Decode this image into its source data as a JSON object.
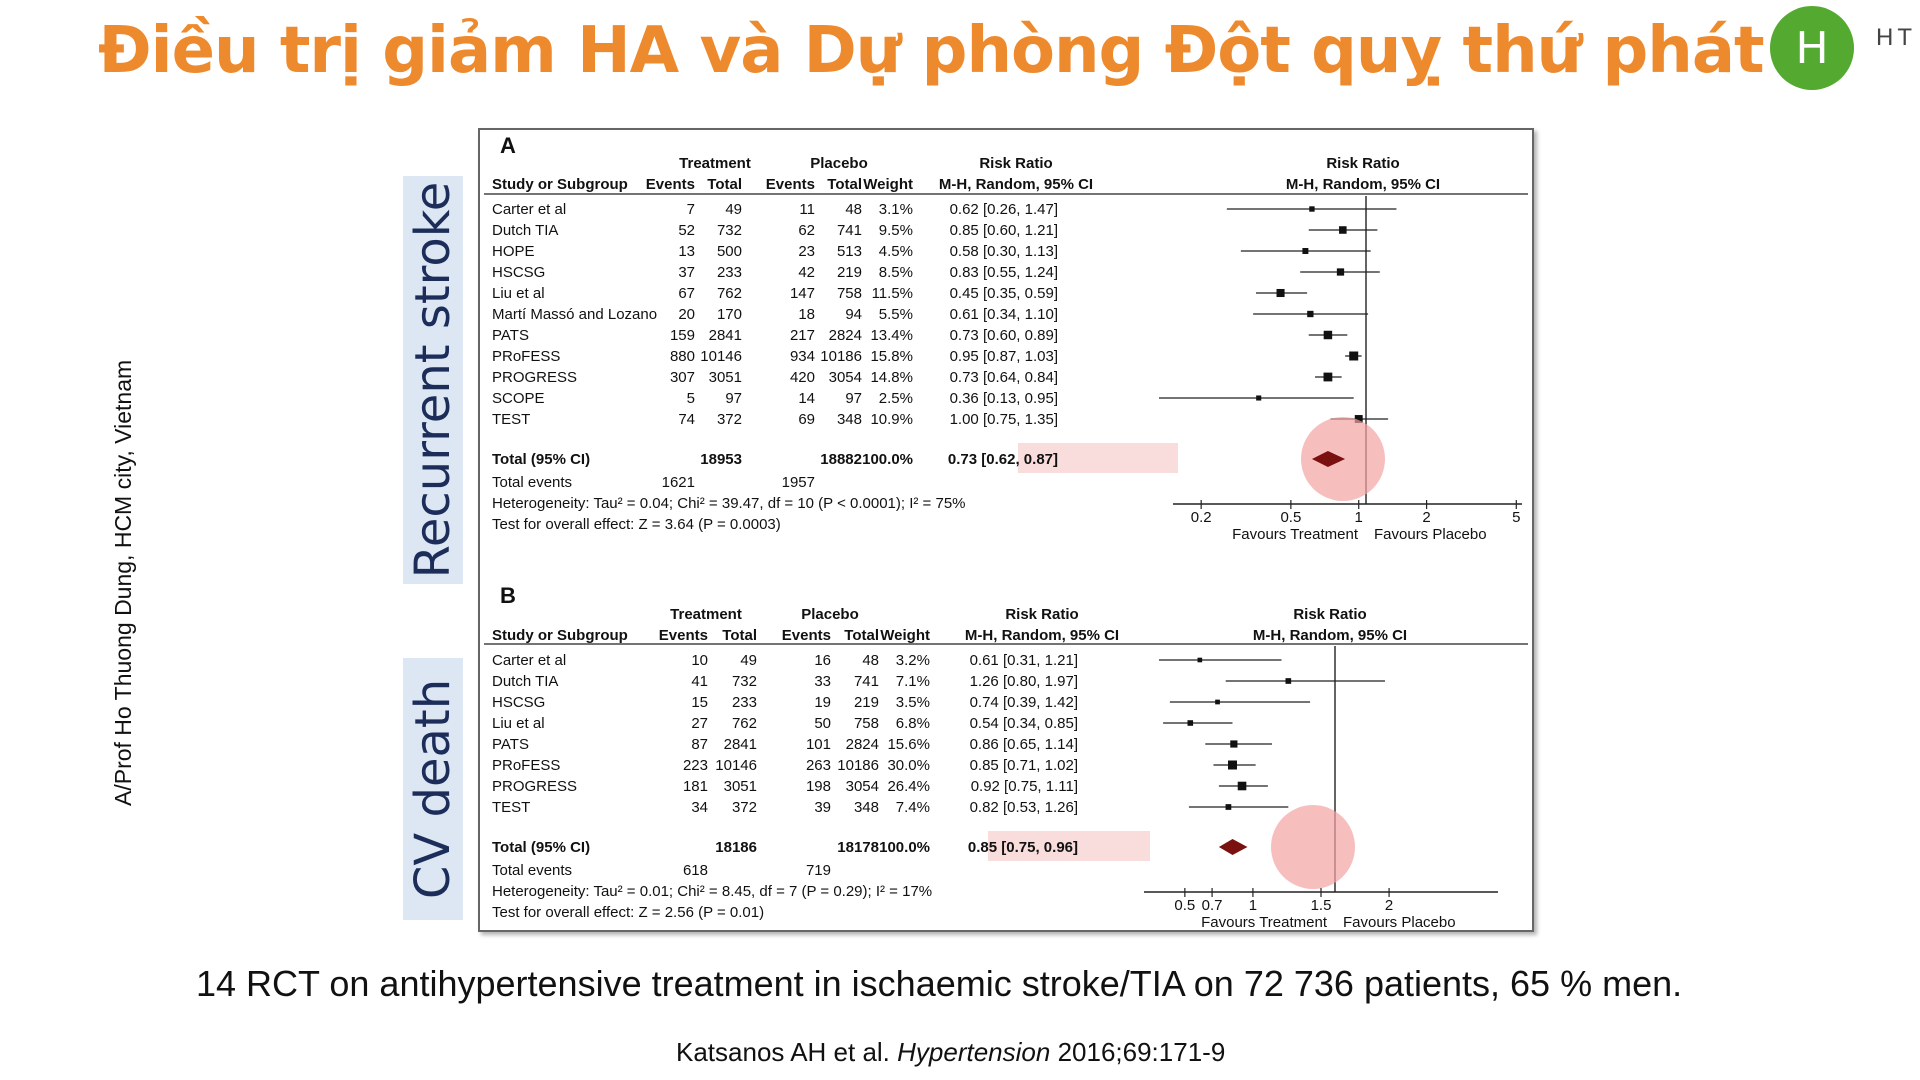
{
  "slide": {
    "title": "Điều trị giảm HA và Dự phòng Đột quỵ thứ phát",
    "logo_letter": "H",
    "logo_text": "HT",
    "author": "A/Prof Ho Thuong Dung, HCM city, Vietnam",
    "label_recurrent": "Recurrent stroke",
    "label_cv": "CV death",
    "summary": "14 RCT  on antihypertensive treatment in ischaemic stroke/TIA on 72 736 patients, 65 % men.",
    "citation_author": "Katsanos AH et al. ",
    "citation_journal": "Hypertension",
    "citation_rest": " 2016;69:171-9"
  },
  "colors": {
    "title": "#ee8a2e",
    "logo": "#54a930",
    "highlight_box": "#f9dcdc",
    "highlight_circle": "#f4a3a3",
    "diamond": "#7a1010",
    "side_label_bg": "#dce7f3",
    "side_label_text": "#1c2d5a"
  },
  "chart_data": [
    {
      "type": "forest",
      "panel_label": "A",
      "header_group": {
        "treatment": "Treatment",
        "placebo": "Placebo",
        "rr": "Risk Ratio",
        "rr_plot": "Risk Ratio"
      },
      "header_cols": {
        "study": "Study or Subgroup",
        "t_events": "Events",
        "t_total": "Total",
        "p_events": "Events",
        "p_total": "Total",
        "weight": "Weight",
        "rr": "M-H, Random, 95% CI",
        "rr_plot": "M-H, Random, 95% CI"
      },
      "studies": [
        {
          "name": "Carter et al",
          "t_events": "7",
          "t_total": "49",
          "p_events": "11",
          "p_total": "48",
          "weight": "3.1%",
          "ci_text": "0.62 [0.26, 1.47]",
          "rr": 0.62,
          "lo": 0.26,
          "hi": 1.47
        },
        {
          "name": "Dutch TIA",
          "t_events": "52",
          "t_total": "732",
          "p_events": "62",
          "p_total": "741",
          "weight": "9.5%",
          "ci_text": "0.85 [0.60, 1.21]",
          "rr": 0.85,
          "lo": 0.6,
          "hi": 1.21
        },
        {
          "name": "HOPE",
          "t_events": "13",
          "t_total": "500",
          "p_events": "23",
          "p_total": "513",
          "weight": "4.5%",
          "ci_text": "0.58 [0.30, 1.13]",
          "rr": 0.58,
          "lo": 0.3,
          "hi": 1.13
        },
        {
          "name": "HSCSG",
          "t_events": "37",
          "t_total": "233",
          "p_events": "42",
          "p_total": "219",
          "weight": "8.5%",
          "ci_text": "0.83 [0.55, 1.24]",
          "rr": 0.83,
          "lo": 0.55,
          "hi": 1.24
        },
        {
          "name": "Liu et al",
          "t_events": "67",
          "t_total": "762",
          "p_events": "147",
          "p_total": "758",
          "weight": "11.5%",
          "ci_text": "0.45 [0.35, 0.59]",
          "rr": 0.45,
          "lo": 0.35,
          "hi": 0.59
        },
        {
          "name": "Martí Massó and Lozano",
          "t_events": "20",
          "t_total": "170",
          "p_events": "18",
          "p_total": "94",
          "weight": "5.5%",
          "ci_text": "0.61 [0.34, 1.10]",
          "rr": 0.61,
          "lo": 0.34,
          "hi": 1.1
        },
        {
          "name": "PATS",
          "t_events": "159",
          "t_total": "2841",
          "p_events": "217",
          "p_total": "2824",
          "weight": "13.4%",
          "ci_text": "0.73 [0.60, 0.89]",
          "rr": 0.73,
          "lo": 0.6,
          "hi": 0.89
        },
        {
          "name": "PRoFESS",
          "t_events": "880",
          "t_total": "10146",
          "p_events": "934",
          "p_total": "10186",
          "weight": "15.8%",
          "ci_text": "0.95 [0.87, 1.03]",
          "rr": 0.95,
          "lo": 0.87,
          "hi": 1.03
        },
        {
          "name": "PROGRESS",
          "t_events": "307",
          "t_total": "3051",
          "p_events": "420",
          "p_total": "3054",
          "weight": "14.8%",
          "ci_text": "0.73 [0.64, 0.84]",
          "rr": 0.73,
          "lo": 0.64,
          "hi": 0.84
        },
        {
          "name": "SCOPE",
          "t_events": "5",
          "t_total": "97",
          "p_events": "14",
          "p_total": "97",
          "weight": "2.5%",
          "ci_text": "0.36 [0.13, 0.95]",
          "rr": 0.36,
          "lo": 0.13,
          "hi": 0.95
        },
        {
          "name": "TEST",
          "t_events": "74",
          "t_total": "372",
          "p_events": "69",
          "p_total": "348",
          "weight": "10.9%",
          "ci_text": "1.00 [0.75, 1.35]",
          "rr": 1.0,
          "lo": 0.75,
          "hi": 1.35
        }
      ],
      "total": {
        "label": "Total (95% CI)",
        "t_total": "18953",
        "p_total": "18882",
        "weight": "100.0%",
        "ci_text": "0.73 [0.62, 0.87]",
        "rr": 0.73,
        "lo": 0.62,
        "hi": 0.87
      },
      "total_events": {
        "label": "Total events",
        "t": "1621",
        "p": "1957"
      },
      "heterogeneity": "Heterogeneity: Tau² = 0.04; Chi² = 39.47, df = 10 (P < 0.0001); I² = 75%",
      "overall_test": "Test for overall effect: Z = 3.64 (P = 0.0003)",
      "axis": {
        "scale": "log",
        "ticks": [
          0.2,
          0.5,
          1,
          2,
          5
        ],
        "tick_labels": [
          "0.2",
          "0.5",
          "1",
          "2",
          "5"
        ],
        "range": [
          0.15,
          5.3
        ]
      },
      "favours_left": "Favours Treatment",
      "favours_right": "Favours Placebo"
    },
    {
      "type": "forest",
      "panel_label": "B",
      "header_group": {
        "treatment": "Treatment",
        "placebo": "Placebo",
        "rr": "Risk Ratio",
        "rr_plot": "Risk Ratio"
      },
      "header_cols": {
        "study": "Study or Subgroup",
        "t_events": "Events",
        "t_total": "Total",
        "p_events": "Events",
        "p_total": "Total",
        "weight": "Weight",
        "rr": "M-H, Random, 95% CI",
        "rr_plot": "M-H, Random, 95% CI"
      },
      "studies": [
        {
          "name": "Carter et al",
          "t_events": "10",
          "t_total": "49",
          "p_events": "16",
          "p_total": "48",
          "weight": "3.2%",
          "ci_text": "0.61 [0.31, 1.21]",
          "rr": 0.61,
          "lo": 0.31,
          "hi": 1.21
        },
        {
          "name": "Dutch TIA",
          "t_events": "41",
          "t_total": "732",
          "p_events": "33",
          "p_total": "741",
          "weight": "7.1%",
          "ci_text": "1.26 [0.80, 1.97]",
          "rr": 1.26,
          "lo": 0.8,
          "hi": 1.97
        },
        {
          "name": "HSCSG",
          "t_events": "15",
          "t_total": "233",
          "p_events": "19",
          "p_total": "219",
          "weight": "3.5%",
          "ci_text": "0.74 [0.39, 1.42]",
          "rr": 0.74,
          "lo": 0.39,
          "hi": 1.42
        },
        {
          "name": "Liu et al",
          "t_events": "27",
          "t_total": "762",
          "p_events": "50",
          "p_total": "758",
          "weight": "6.8%",
          "ci_text": "0.54 [0.34, 0.85]",
          "rr": 0.54,
          "lo": 0.34,
          "hi": 0.85
        },
        {
          "name": "PATS",
          "t_events": "87",
          "t_total": "2841",
          "p_events": "101",
          "p_total": "2824",
          "weight": "15.6%",
          "ci_text": "0.86 [0.65, 1.14]",
          "rr": 0.86,
          "lo": 0.65,
          "hi": 1.14
        },
        {
          "name": "PRoFESS",
          "t_events": "223",
          "t_total": "10146",
          "p_events": "263",
          "p_total": "10186",
          "weight": "30.0%",
          "ci_text": "0.85 [0.71, 1.02]",
          "rr": 0.85,
          "lo": 0.71,
          "hi": 1.02
        },
        {
          "name": "PROGRESS",
          "t_events": "181",
          "t_total": "3051",
          "p_events": "198",
          "p_total": "3054",
          "weight": "26.4%",
          "ci_text": "0.92 [0.75, 1.11]",
          "rr": 0.92,
          "lo": 0.75,
          "hi": 1.11
        },
        {
          "name": "TEST",
          "t_events": "34",
          "t_total": "372",
          "p_events": "39",
          "p_total": "348",
          "weight": "7.4%",
          "ci_text": "0.82 [0.53, 1.26]",
          "rr": 0.82,
          "lo": 0.53,
          "hi": 1.26
        }
      ],
      "total": {
        "label": "Total (95% CI)",
        "t_total": "18186",
        "p_total": "18178",
        "weight": "100.0%",
        "ci_text": "0.85 [0.75, 0.96]",
        "rr": 0.85,
        "lo": 0.75,
        "hi": 0.96
      },
      "total_events": {
        "label": "Total events",
        "t": "618",
        "p": "719"
      },
      "heterogeneity": "Heterogeneity: Tau² = 0.01; Chi² = 8.45, df = 7 (P = 0.29); I² = 17%",
      "overall_test": "Test for overall effect: Z = 2.56 (P = 0.01)",
      "axis": {
        "scale": "linear",
        "ticks": [
          0.5,
          0.7,
          1,
          1.5,
          2
        ],
        "tick_labels": [
          "0.5",
          "0.7",
          "1",
          "1.5",
          "2"
        ],
        "range": [
          0.2,
          2.8
        ]
      },
      "favours_left": "Favours Treatment",
      "favours_right": "Favours Placebo"
    }
  ]
}
